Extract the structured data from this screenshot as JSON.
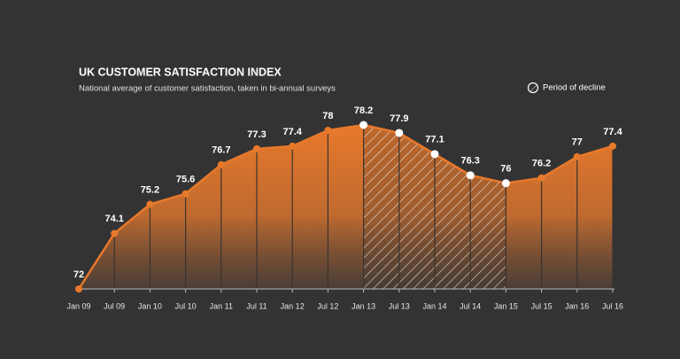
{
  "chart_data": {
    "type": "line",
    "title": "UK CUSTOMER SATISFACTION INDEX",
    "subtitle": "National average of customer satisfaction, taken in bi-annual surveys",
    "categories": [
      "Jan 09",
      "Jul 09",
      "Jan 10",
      "Jul 10",
      "Jan 11",
      "Jul 11",
      "Jan 12",
      "Jul 12",
      "Jan 13",
      "Jul 13",
      "Jan 14",
      "Jul 14",
      "Jan 15",
      "Jul 15",
      "Jan 16",
      "Jul 16"
    ],
    "values": [
      72,
      74.1,
      75.2,
      75.6,
      76.7,
      77.3,
      77.4,
      78,
      78.2,
      77.9,
      77.1,
      76.3,
      76,
      76.2,
      77,
      77.4
    ],
    "color": "#e8792b",
    "decline_period": {
      "label": "Period of decline",
      "from": "Jan 13",
      "to": "Jan 15"
    }
  }
}
